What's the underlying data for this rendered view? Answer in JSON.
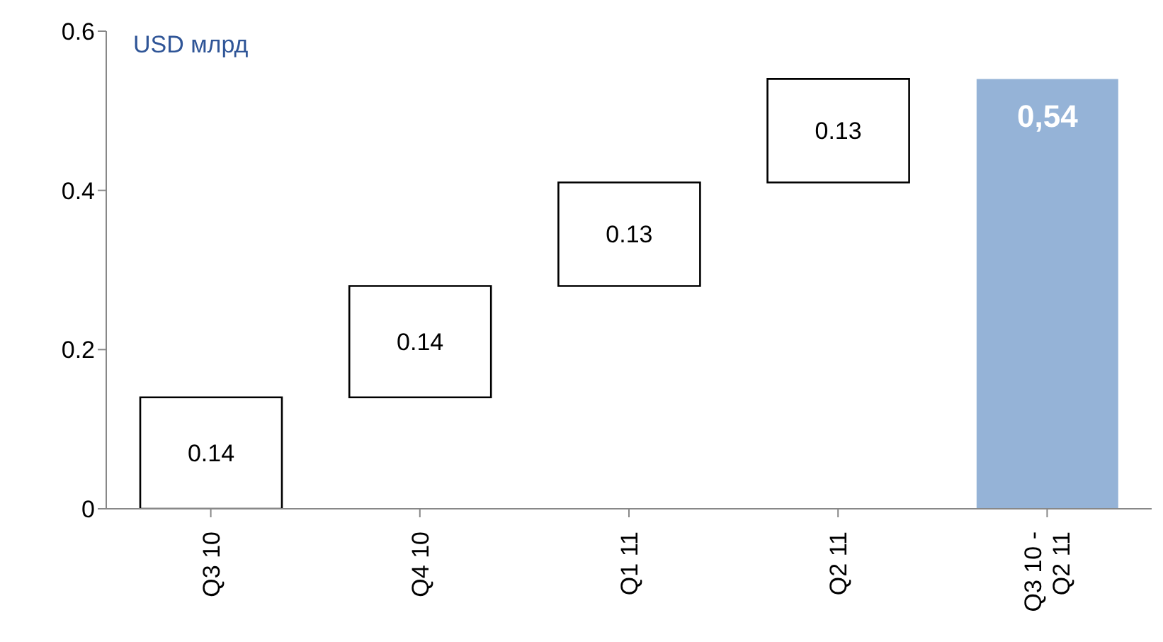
{
  "chart_data": {
    "type": "bar",
    "categories": [
      "Q3 10",
      "Q4 10",
      "Q1 11",
      "Q2 11",
      "Q3 10 -\nQ2 11"
    ],
    "values": [
      0.14,
      0.14,
      0.13,
      0.13,
      0.54
    ],
    "base": [
      0,
      0.14,
      0.28,
      0.41,
      0
    ],
    "colors": [
      "#ffffff",
      "#ffffff",
      "#ffffff",
      "#ffffff",
      "#95b3d7"
    ],
    "value_labels": [
      "0.14",
      "0.14",
      "0.13",
      "0.13",
      "0,54"
    ],
    "ylim": [
      0,
      0.6
    ],
    "yticks": [
      0,
      {
        "value": 0.2,
        "label": "0.2"
      },
      {
        "value": 0.4,
        "label": "0.4"
      },
      {
        "value": 0.6,
        "label": "0.6"
      }
    ],
    "annotations": [
      "USD млрд"
    ],
    "grid": false
  }
}
